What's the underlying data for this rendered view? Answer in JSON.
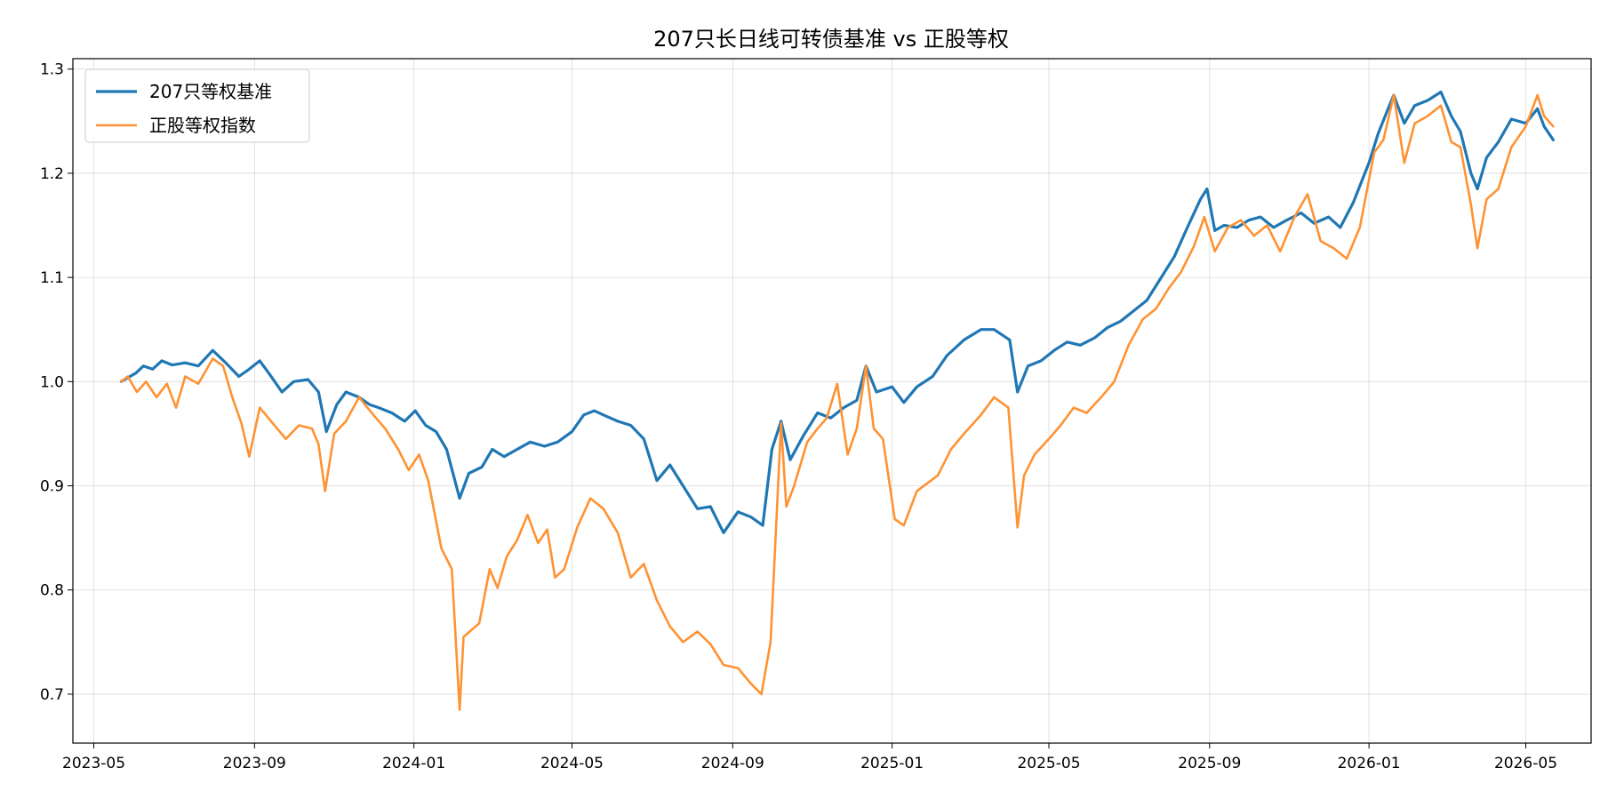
{
  "chart_data": {
    "type": "line",
    "title": "207只长日线可转债基准 vs 正股等权",
    "xlabel": "",
    "ylabel": "",
    "x_range": [
      "2023-04-15",
      "2026-06-20"
    ],
    "ylim": [
      0.653,
      1.31
    ],
    "y_ticks": [
      0.7,
      0.8,
      0.9,
      1.0,
      1.1,
      1.2,
      1.3
    ],
    "y_tick_labels": [
      "0.7",
      "0.8",
      "0.9",
      "1.0",
      "1.1",
      "1.2",
      "1.3"
    ],
    "x_ticks": [
      "2023-05-01",
      "2023-09-01",
      "2024-01-01",
      "2024-05-01",
      "2024-09-01",
      "2025-01-01",
      "2025-05-01",
      "2025-09-01",
      "2026-01-01",
      "2026-05-01"
    ],
    "x_tick_labels": [
      "2023-05",
      "2023-09",
      "2024-01",
      "2024-05",
      "2024-09",
      "2025-01",
      "2025-05",
      "2025-09",
      "2026-01",
      "2026-05"
    ],
    "grid": true,
    "legend_position": "top-left",
    "series": [
      {
        "name": "207只等权基准",
        "color": "#1f77b4",
        "points": [
          [
            "2023-05-22",
            1.0
          ],
          [
            "2023-05-26",
            1.003
          ],
          [
            "2023-06-02",
            1.008
          ],
          [
            "2023-06-08",
            1.015
          ],
          [
            "2023-06-15",
            1.012
          ],
          [
            "2023-06-22",
            1.02
          ],
          [
            "2023-06-30",
            1.016
          ],
          [
            "2023-07-10",
            1.018
          ],
          [
            "2023-07-20",
            1.015
          ],
          [
            "2023-07-31",
            1.03
          ],
          [
            "2023-08-10",
            1.018
          ],
          [
            "2023-08-20",
            1.005
          ],
          [
            "2023-08-28",
            1.012
          ],
          [
            "2023-09-05",
            1.02
          ],
          [
            "2023-09-12",
            1.008
          ],
          [
            "2023-09-22",
            0.99
          ],
          [
            "2023-10-01",
            1.0
          ],
          [
            "2023-10-12",
            1.002
          ],
          [
            "2023-10-20",
            0.99
          ],
          [
            "2023-10-26",
            0.952
          ],
          [
            "2023-11-03",
            0.978
          ],
          [
            "2023-11-10",
            0.99
          ],
          [
            "2023-11-20",
            0.985
          ],
          [
            "2023-11-28",
            0.978
          ],
          [
            "2023-12-05",
            0.975
          ],
          [
            "2023-12-15",
            0.97
          ],
          [
            "2023-12-25",
            0.962
          ],
          [
            "2024-01-02",
            0.972
          ],
          [
            "2024-01-10",
            0.958
          ],
          [
            "2024-01-18",
            0.952
          ],
          [
            "2024-01-26",
            0.935
          ],
          [
            "2024-02-05",
            0.888
          ],
          [
            "2024-02-12",
            0.912
          ],
          [
            "2024-02-22",
            0.918
          ],
          [
            "2024-03-01",
            0.935
          ],
          [
            "2024-03-10",
            0.928
          ],
          [
            "2024-03-20",
            0.935
          ],
          [
            "2024-03-30",
            0.942
          ],
          [
            "2024-04-10",
            0.938
          ],
          [
            "2024-04-20",
            0.942
          ],
          [
            "2024-05-01",
            0.952
          ],
          [
            "2024-05-10",
            0.968
          ],
          [
            "2024-05-18",
            0.972
          ],
          [
            "2024-05-25",
            0.968
          ],
          [
            "2024-06-05",
            0.962
          ],
          [
            "2024-06-15",
            0.958
          ],
          [
            "2024-06-25",
            0.945
          ],
          [
            "2024-07-05",
            0.905
          ],
          [
            "2024-07-15",
            0.92
          ],
          [
            "2024-07-25",
            0.9
          ],
          [
            "2024-08-05",
            0.878
          ],
          [
            "2024-08-15",
            0.88
          ],
          [
            "2024-08-25",
            0.855
          ],
          [
            "2024-09-05",
            0.875
          ],
          [
            "2024-09-15",
            0.87
          ],
          [
            "2024-09-24",
            0.862
          ],
          [
            "2024-10-01",
            0.935
          ],
          [
            "2024-10-08",
            0.962
          ],
          [
            "2024-10-15",
            0.925
          ],
          [
            "2024-10-25",
            0.948
          ],
          [
            "2024-11-05",
            0.97
          ],
          [
            "2024-11-15",
            0.965
          ],
          [
            "2024-11-25",
            0.975
          ],
          [
            "2024-12-05",
            0.982
          ],
          [
            "2024-12-12",
            1.015
          ],
          [
            "2024-12-20",
            0.99
          ],
          [
            "2025-01-01",
            0.995
          ],
          [
            "2025-01-10",
            0.98
          ],
          [
            "2025-01-20",
            0.995
          ],
          [
            "2025-02-01",
            1.005
          ],
          [
            "2025-02-12",
            1.025
          ],
          [
            "2025-02-25",
            1.04
          ],
          [
            "2025-03-10",
            1.05
          ],
          [
            "2025-03-20",
            1.05
          ],
          [
            "2025-04-01",
            1.04
          ],
          [
            "2025-04-07",
            0.99
          ],
          [
            "2025-04-15",
            1.015
          ],
          [
            "2025-04-25",
            1.02
          ],
          [
            "2025-05-05",
            1.03
          ],
          [
            "2025-05-15",
            1.038
          ],
          [
            "2025-05-25",
            1.035
          ],
          [
            "2025-06-05",
            1.042
          ],
          [
            "2025-06-15",
            1.052
          ],
          [
            "2025-06-25",
            1.058
          ],
          [
            "2025-07-05",
            1.068
          ],
          [
            "2025-07-15",
            1.078
          ],
          [
            "2025-07-25",
            1.098
          ],
          [
            "2025-08-05",
            1.12
          ],
          [
            "2025-08-15",
            1.148
          ],
          [
            "2025-08-25",
            1.175
          ],
          [
            "2025-08-30",
            1.185
          ],
          [
            "2025-09-05",
            1.145
          ],
          [
            "2025-09-12",
            1.15
          ],
          [
            "2025-09-22",
            1.148
          ],
          [
            "2025-10-01",
            1.155
          ],
          [
            "2025-10-10",
            1.158
          ],
          [
            "2025-10-20",
            1.148
          ],
          [
            "2025-10-30",
            1.155
          ],
          [
            "2025-11-10",
            1.162
          ],
          [
            "2025-11-20",
            1.152
          ],
          [
            "2025-12-01",
            1.158
          ],
          [
            "2025-12-10",
            1.148
          ],
          [
            "2025-12-20",
            1.172
          ],
          [
            "2026-01-01",
            1.21
          ],
          [
            "2026-01-08",
            1.238
          ],
          [
            "2026-01-15",
            1.26
          ],
          [
            "2026-01-20",
            1.275
          ],
          [
            "2026-01-28",
            1.248
          ],
          [
            "2026-02-05",
            1.265
          ],
          [
            "2026-02-15",
            1.27
          ],
          [
            "2026-02-25",
            1.278
          ],
          [
            "2026-03-05",
            1.255
          ],
          [
            "2026-03-12",
            1.24
          ],
          [
            "2026-03-20",
            1.2
          ],
          [
            "2026-03-25",
            1.185
          ],
          [
            "2026-04-01",
            1.215
          ],
          [
            "2026-04-10",
            1.23
          ],
          [
            "2026-04-20",
            1.252
          ],
          [
            "2026-05-01",
            1.248
          ],
          [
            "2026-05-10",
            1.262
          ],
          [
            "2026-05-15",
            1.245
          ],
          [
            "2026-05-22",
            1.232
          ]
        ]
      },
      {
        "name": "正股等权指数",
        "color": "#ff9232",
        "points": [
          [
            "2023-05-22",
            1.0
          ],
          [
            "2023-05-27",
            1.005
          ],
          [
            "2023-06-03",
            0.99
          ],
          [
            "2023-06-10",
            1.0
          ],
          [
            "2023-06-18",
            0.985
          ],
          [
            "2023-06-26",
            0.998
          ],
          [
            "2023-07-03",
            0.975
          ],
          [
            "2023-07-10",
            1.005
          ],
          [
            "2023-07-20",
            0.998
          ],
          [
            "2023-07-31",
            1.022
          ],
          [
            "2023-08-08",
            1.015
          ],
          [
            "2023-08-15",
            0.985
          ],
          [
            "2023-08-22",
            0.96
          ],
          [
            "2023-08-28",
            0.928
          ],
          [
            "2023-09-05",
            0.975
          ],
          [
            "2023-09-15",
            0.96
          ],
          [
            "2023-09-25",
            0.945
          ],
          [
            "2023-10-05",
            0.958
          ],
          [
            "2023-10-15",
            0.955
          ],
          [
            "2023-10-20",
            0.94
          ],
          [
            "2023-10-25",
            0.895
          ],
          [
            "2023-11-01",
            0.95
          ],
          [
            "2023-11-10",
            0.962
          ],
          [
            "2023-11-20",
            0.985
          ],
          [
            "2023-12-01",
            0.968
          ],
          [
            "2023-12-10",
            0.955
          ],
          [
            "2023-12-20",
            0.935
          ],
          [
            "2023-12-28",
            0.915
          ],
          [
            "2024-01-05",
            0.93
          ],
          [
            "2024-01-12",
            0.905
          ],
          [
            "2024-01-22",
            0.84
          ],
          [
            "2024-01-30",
            0.82
          ],
          [
            "2024-02-05",
            0.685
          ],
          [
            "2024-02-08",
            0.755
          ],
          [
            "2024-02-20",
            0.768
          ],
          [
            "2024-02-28",
            0.82
          ],
          [
            "2024-03-05",
            0.802
          ],
          [
            "2024-03-12",
            0.832
          ],
          [
            "2024-03-20",
            0.848
          ],
          [
            "2024-03-28",
            0.872
          ],
          [
            "2024-04-05",
            0.845
          ],
          [
            "2024-04-12",
            0.858
          ],
          [
            "2024-04-18",
            0.812
          ],
          [
            "2024-04-25",
            0.82
          ],
          [
            "2024-05-05",
            0.86
          ],
          [
            "2024-05-15",
            0.888
          ],
          [
            "2024-05-25",
            0.878
          ],
          [
            "2024-06-05",
            0.855
          ],
          [
            "2024-06-15",
            0.812
          ],
          [
            "2024-06-25",
            0.825
          ],
          [
            "2024-07-05",
            0.79
          ],
          [
            "2024-07-15",
            0.765
          ],
          [
            "2024-07-25",
            0.75
          ],
          [
            "2024-08-05",
            0.76
          ],
          [
            "2024-08-15",
            0.748
          ],
          [
            "2024-08-25",
            0.728
          ],
          [
            "2024-09-05",
            0.725
          ],
          [
            "2024-09-15",
            0.71
          ],
          [
            "2024-09-23",
            0.7
          ],
          [
            "2024-09-30",
            0.75
          ],
          [
            "2024-10-08",
            0.96
          ],
          [
            "2024-10-12",
            0.88
          ],
          [
            "2024-10-18",
            0.9
          ],
          [
            "2024-10-28",
            0.942
          ],
          [
            "2024-11-05",
            0.955
          ],
          [
            "2024-11-12",
            0.965
          ],
          [
            "2024-11-20",
            0.998
          ],
          [
            "2024-11-28",
            0.93
          ],
          [
            "2024-12-05",
            0.955
          ],
          [
            "2024-12-12",
            1.015
          ],
          [
            "2024-12-18",
            0.955
          ],
          [
            "2024-12-25",
            0.945
          ],
          [
            "2025-01-03",
            0.868
          ],
          [
            "2025-01-10",
            0.862
          ],
          [
            "2025-01-20",
            0.895
          ],
          [
            "2025-02-05",
            0.91
          ],
          [
            "2025-02-15",
            0.935
          ],
          [
            "2025-02-25",
            0.95
          ],
          [
            "2025-03-10",
            0.968
          ],
          [
            "2025-03-20",
            0.985
          ],
          [
            "2025-03-31",
            0.975
          ],
          [
            "2025-04-07",
            0.86
          ],
          [
            "2025-04-12",
            0.91
          ],
          [
            "2025-04-20",
            0.93
          ],
          [
            "2025-05-01",
            0.945
          ],
          [
            "2025-05-10",
            0.958
          ],
          [
            "2025-05-20",
            0.975
          ],
          [
            "2025-05-30",
            0.97
          ],
          [
            "2025-06-10",
            0.985
          ],
          [
            "2025-06-20",
            1.0
          ],
          [
            "2025-07-01",
            1.035
          ],
          [
            "2025-07-12",
            1.06
          ],
          [
            "2025-07-22",
            1.07
          ],
          [
            "2025-08-01",
            1.09
          ],
          [
            "2025-08-10",
            1.105
          ],
          [
            "2025-08-20",
            1.13
          ],
          [
            "2025-08-28",
            1.158
          ],
          [
            "2025-09-05",
            1.125
          ],
          [
            "2025-09-15",
            1.148
          ],
          [
            "2025-09-25",
            1.155
          ],
          [
            "2025-10-05",
            1.14
          ],
          [
            "2025-10-15",
            1.15
          ],
          [
            "2025-10-25",
            1.125
          ],
          [
            "2025-11-05",
            1.158
          ],
          [
            "2025-11-15",
            1.18
          ],
          [
            "2025-11-25",
            1.135
          ],
          [
            "2025-12-05",
            1.128
          ],
          [
            "2025-12-15",
            1.118
          ],
          [
            "2025-12-25",
            1.148
          ],
          [
            "2026-01-05",
            1.22
          ],
          [
            "2026-01-12",
            1.232
          ],
          [
            "2026-01-20",
            1.275
          ],
          [
            "2026-01-28",
            1.21
          ],
          [
            "2026-02-05",
            1.248
          ],
          [
            "2026-02-15",
            1.255
          ],
          [
            "2026-02-25",
            1.265
          ],
          [
            "2026-03-05",
            1.23
          ],
          [
            "2026-03-12",
            1.225
          ],
          [
            "2026-03-20",
            1.17
          ],
          [
            "2026-03-25",
            1.128
          ],
          [
            "2026-04-01",
            1.175
          ],
          [
            "2026-04-10",
            1.185
          ],
          [
            "2026-04-20",
            1.225
          ],
          [
            "2026-05-01",
            1.245
          ],
          [
            "2026-05-10",
            1.275
          ],
          [
            "2026-05-15",
            1.255
          ],
          [
            "2026-05-22",
            1.245
          ]
        ]
      }
    ]
  }
}
